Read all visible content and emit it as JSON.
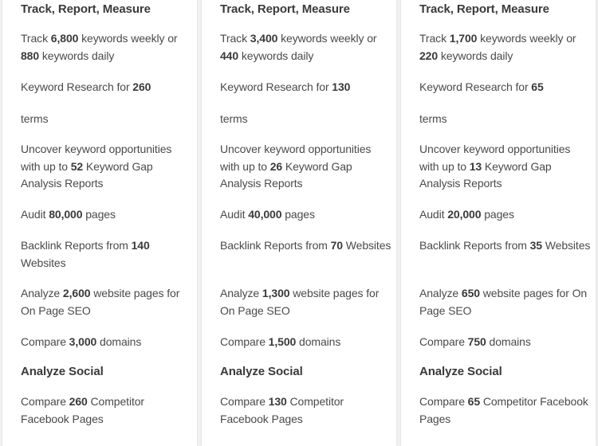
{
  "plans": [
    {
      "items": [
        {
          "heading": "Track, Report, Measure"
        },
        {
          "parts": [
            [
              "Track ",
              0
            ],
            [
              "6,800",
              1
            ],
            [
              " keywords weekly or ",
              0
            ],
            [
              "880",
              1
            ],
            [
              " keywords daily",
              0
            ]
          ]
        },
        {
          "parts": [
            [
              "Keyword Research for ",
              0
            ],
            [
              "260",
              1
            ]
          ]
        },
        {
          "parts": [
            [
              "terms",
              0
            ]
          ]
        },
        {
          "parts": [
            [
              "Uncover keyword opportunities with up to ",
              0
            ],
            [
              "52",
              1
            ],
            [
              " Keyword Gap Analysis Reports",
              0
            ]
          ]
        },
        {
          "parts": [
            [
              "Audit ",
              0
            ],
            [
              "80,000",
              1
            ],
            [
              " pages",
              0
            ]
          ]
        },
        {
          "parts": [
            [
              "Backlink Reports from ",
              0
            ],
            [
              "140",
              1
            ],
            [
              " Websites",
              0
            ]
          ]
        },
        {
          "parts": [
            [
              "Analyze ",
              0
            ],
            [
              "2,600",
              1
            ],
            [
              " website pages for On Page SEO",
              0
            ]
          ]
        },
        {
          "parts": [
            [
              "Compare ",
              0
            ],
            [
              "3,000",
              1
            ],
            [
              " domains",
              0
            ]
          ]
        },
        {
          "heading": "Analyze Social"
        },
        {
          "parts": [
            [
              "Compare ",
              0
            ],
            [
              "260",
              1
            ],
            [
              " Competitor Facebook Pages",
              0
            ]
          ]
        }
      ]
    },
    {
      "items": [
        {
          "heading": "Track, Report, Measure"
        },
        {
          "parts": [
            [
              "Track ",
              0
            ],
            [
              "3,400",
              1
            ],
            [
              " keywords weekly or ",
              0
            ],
            [
              "440",
              1
            ],
            [
              " keywords daily",
              0
            ]
          ]
        },
        {
          "parts": [
            [
              "Keyword Research for ",
              0
            ],
            [
              "130",
              1
            ]
          ]
        },
        {
          "parts": [
            [
              "terms",
              0
            ]
          ]
        },
        {
          "parts": [
            [
              "Uncover keyword opportunities with up to ",
              0
            ],
            [
              "26",
              1
            ],
            [
              " Keyword Gap Analysis Reports",
              0
            ]
          ]
        },
        {
          "parts": [
            [
              "Audit ",
              0
            ],
            [
              "40,000",
              1
            ],
            [
              " pages",
              0
            ]
          ]
        },
        {
          "parts": [
            [
              "Backlink Reports from ",
              0
            ],
            [
              "70",
              1
            ],
            [
              " Websites",
              0
            ]
          ]
        },
        {
          "parts": [
            [
              "Analyze ",
              0
            ],
            [
              "1,300",
              1
            ],
            [
              " website pages for On Page SEO",
              0
            ]
          ]
        },
        {
          "parts": [
            [
              "Compare ",
              0
            ],
            [
              "1,500",
              1
            ],
            [
              " domains",
              0
            ]
          ]
        },
        {
          "heading": "Analyze Social"
        },
        {
          "parts": [
            [
              "Compare ",
              0
            ],
            [
              "130",
              1
            ],
            [
              " Competitor Facebook Pages",
              0
            ]
          ]
        }
      ]
    },
    {
      "items": [
        {
          "heading": "Track, Report, Measure"
        },
        {
          "parts": [
            [
              "Track ",
              0
            ],
            [
              "1,700",
              1
            ],
            [
              " keywords weekly or ",
              0
            ],
            [
              "220",
              1
            ],
            [
              " keywords daily",
              0
            ]
          ]
        },
        {
          "parts": [
            [
              "Keyword Research for ",
              0
            ],
            [
              "65",
              1
            ]
          ]
        },
        {
          "parts": [
            [
              "terms",
              0
            ]
          ]
        },
        {
          "parts": [
            [
              "Uncover keyword opportunities with up to ",
              0
            ],
            [
              "13",
              1
            ],
            [
              " Keyword Gap Analysis Reports",
              0
            ]
          ]
        },
        {
          "parts": [
            [
              "Audit ",
              0
            ],
            [
              "20,000",
              1
            ],
            [
              " pages",
              0
            ]
          ]
        },
        {
          "parts": [
            [
              "Backlink Reports from ",
              0
            ],
            [
              "35",
              1
            ],
            [
              " Websites",
              0
            ]
          ]
        },
        {
          "parts": [
            [
              "Analyze ",
              0
            ],
            [
              "650",
              1
            ],
            [
              " website pages for On Page SEO",
              0
            ]
          ]
        },
        {
          "parts": [
            [
              "Compare ",
              0
            ],
            [
              "750",
              1
            ],
            [
              " domains",
              0
            ]
          ]
        },
        {
          "heading": "Analyze Social"
        },
        {
          "parts": [
            [
              "Compare ",
              0
            ],
            [
              "65",
              1
            ],
            [
              " Competitor Facebook Pages",
              0
            ]
          ]
        }
      ]
    }
  ]
}
